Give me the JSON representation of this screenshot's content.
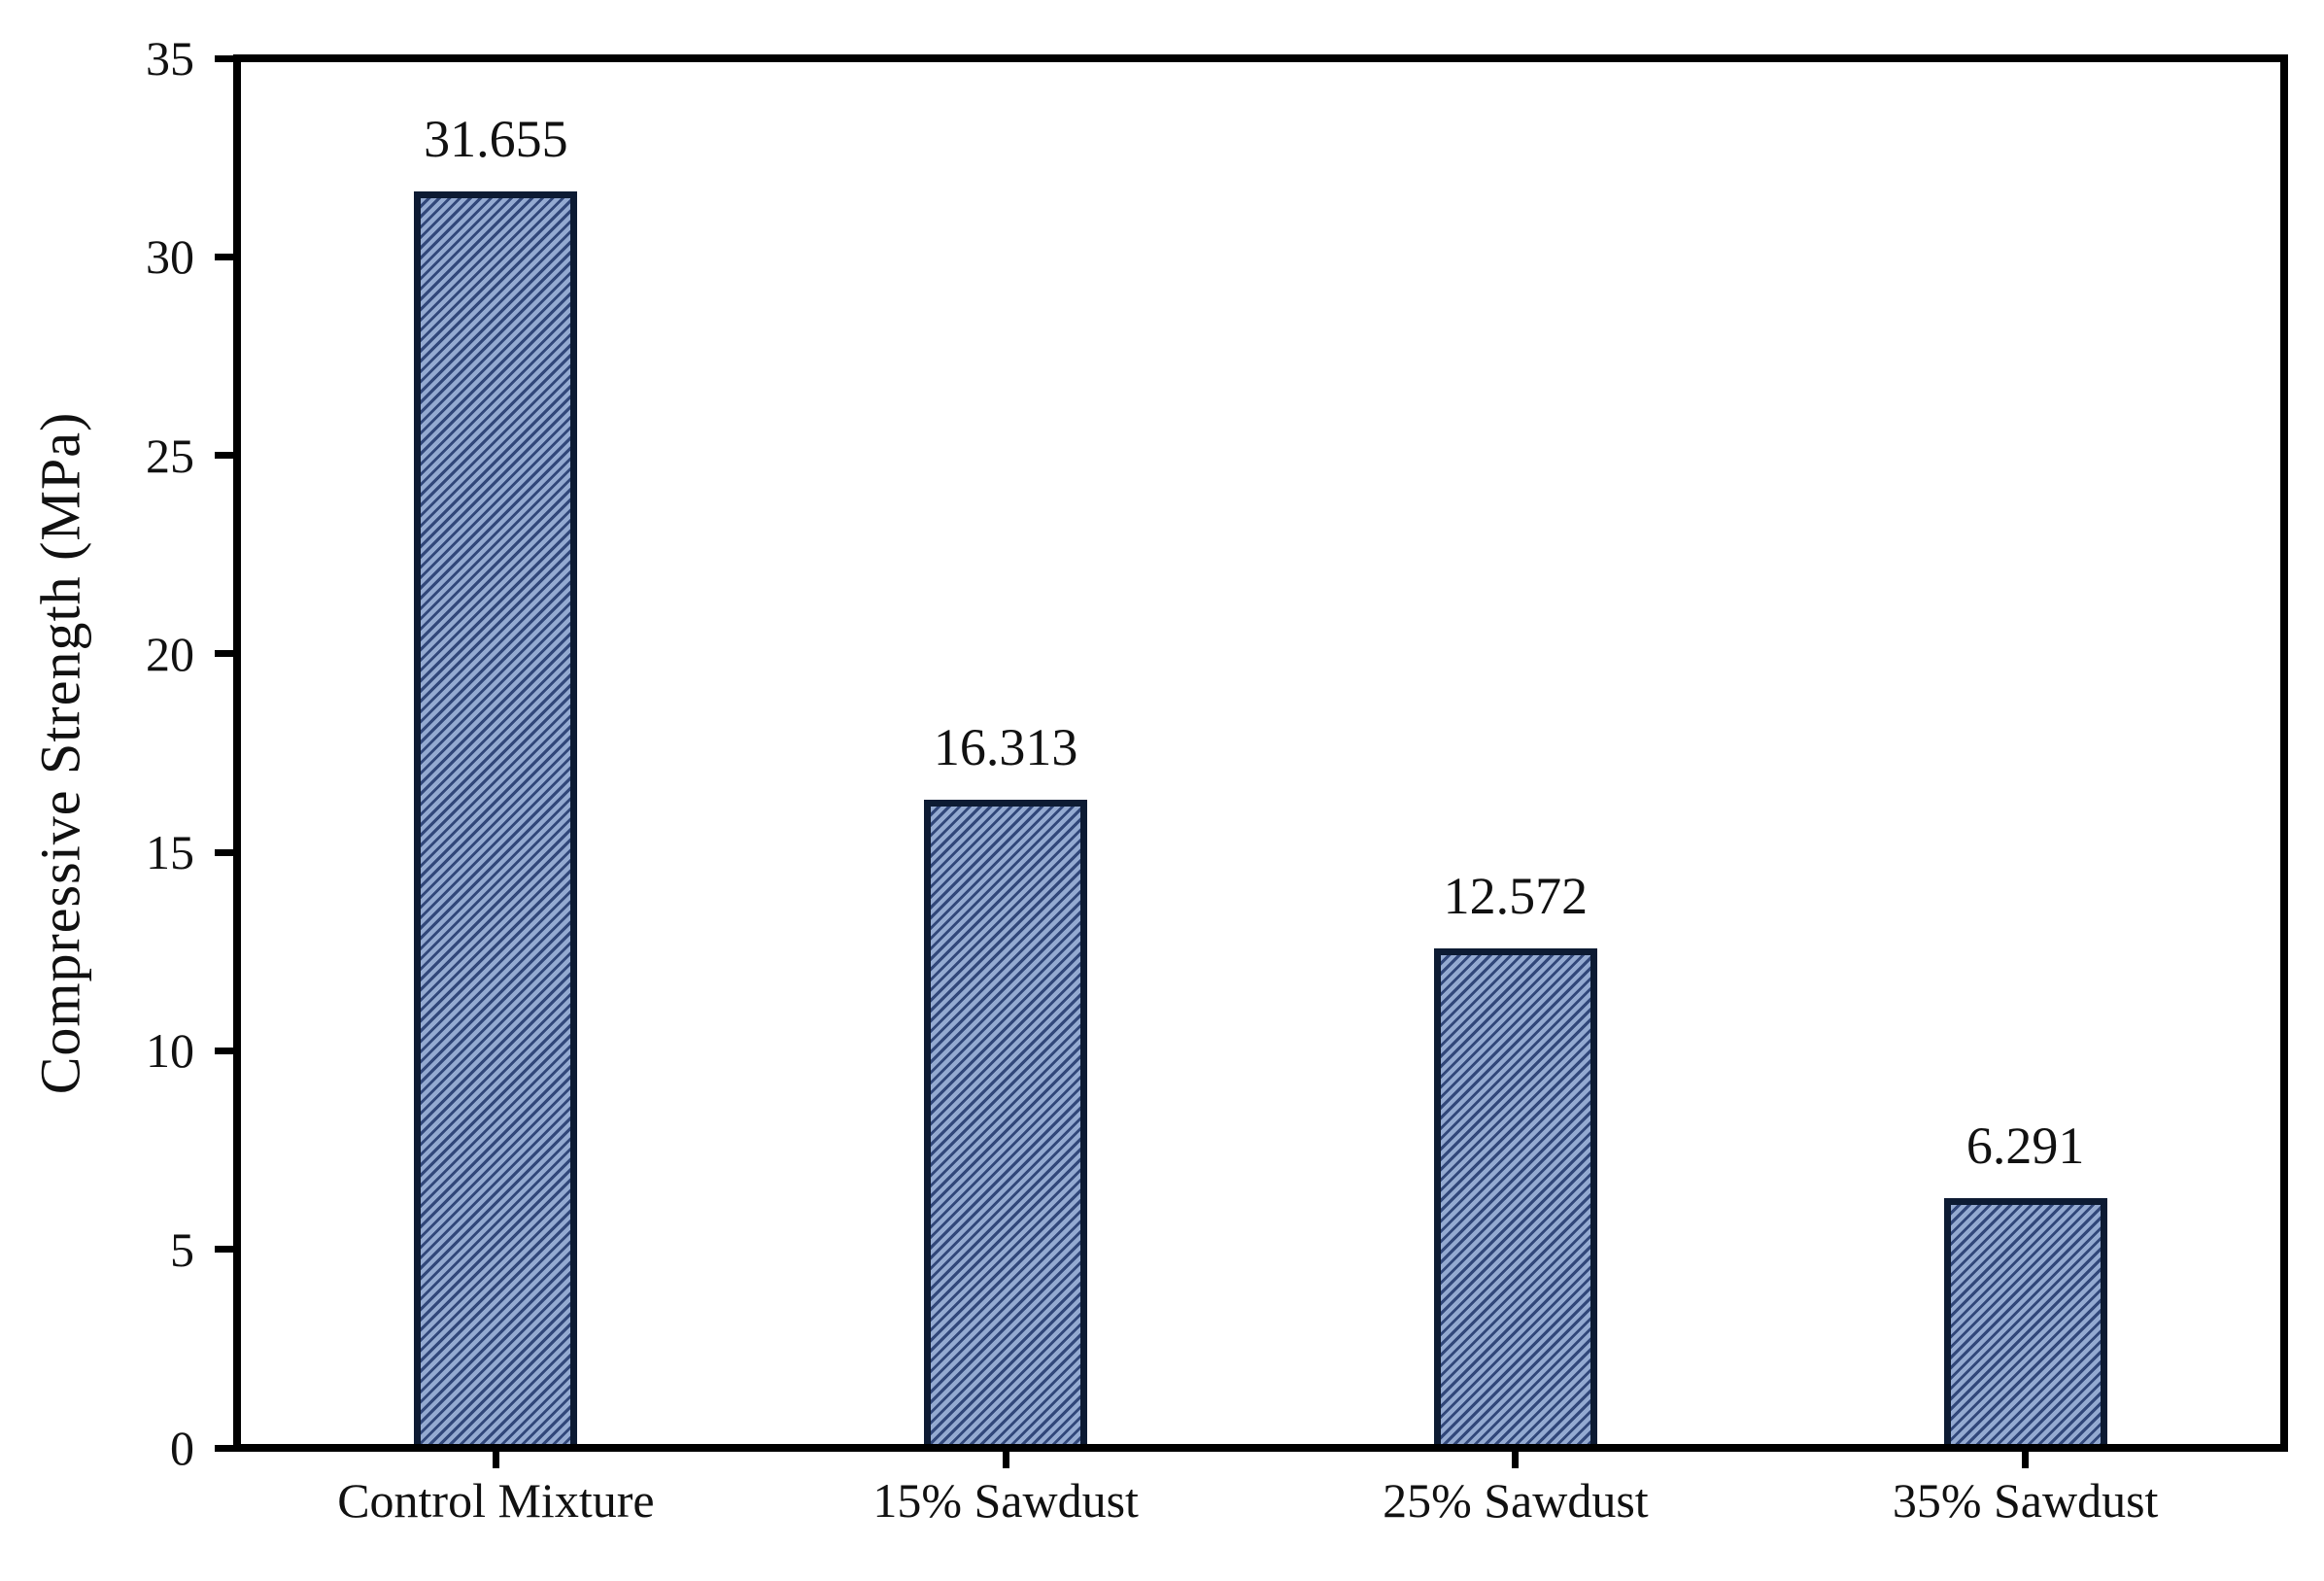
{
  "chart_data": {
    "type": "bar",
    "categories": [
      "Control Mixture",
      "15% Sawdust",
      "25% Sawdust",
      "35% Sawdust"
    ],
    "values": [
      31.655,
      16.313,
      12.572,
      6.291
    ],
    "value_labels": [
      "31.655",
      "16.313",
      "12.572",
      "6.291"
    ],
    "title": "",
    "xlabel": "",
    "ylabel": "Compressive Strength (MPa)",
    "ylim": [
      0,
      35
    ],
    "yticks": [
      0,
      5,
      10,
      15,
      20,
      25,
      30,
      35
    ],
    "grid": false,
    "legend": "none",
    "colors": {
      "bar_fill_light": "#94aad1",
      "bar_hatch_dark": "#31477a",
      "bar_border": "#0d1b33",
      "axis": "#000000",
      "text": "#111111",
      "background": "#ffffff"
    }
  }
}
